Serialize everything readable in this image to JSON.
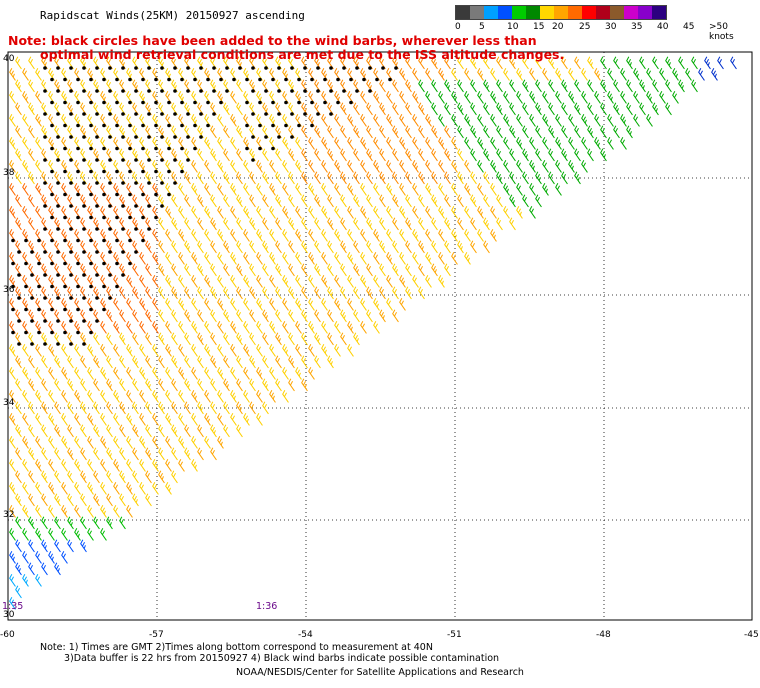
{
  "title": "Rapidscat Winds(25KM) 20150927 ascending",
  "note_line1": "Note: black circles have been added to the wind barbs, wherever less than",
  "note_line2": "optimal wind retrieval conditions are met due to the ISS altitude changes.",
  "legend": {
    "labels": [
      "0",
      "5",
      "10",
      "15",
      "20",
      "25",
      "30",
      "35",
      "40",
      "45",
      ">50 knots"
    ],
    "colors": [
      "#3a3a3a",
      "#7a7a7a",
      "#00a0ff",
      "#0050ff",
      "#00cc00",
      "#008800",
      "#ffd700",
      "#ffa500",
      "#ff6a00",
      "#ff0000",
      "#b0001a",
      "#8b5a2b",
      "#cc00cc",
      "#8800cc",
      "#2b0080"
    ]
  },
  "lat_labels": [
    "40",
    "38",
    "36",
    "34",
    "32",
    "30"
  ],
  "lon_labels": [
    "-60",
    "-57",
    "-54",
    "-51",
    "-48",
    "-45"
  ],
  "times": [
    "1:35",
    "1:36"
  ],
  "footnote_line1": "Note: 1) Times are GMT 2)Times along bottom correspond to measurement at 40N",
  "footnote_line2": "3)Data buffer is 22 hrs from 20150927 4) Black wind barbs indicate possible contamination",
  "credit": "NOAA/NESDIS/Center for Satellite Applications and Research"
}
